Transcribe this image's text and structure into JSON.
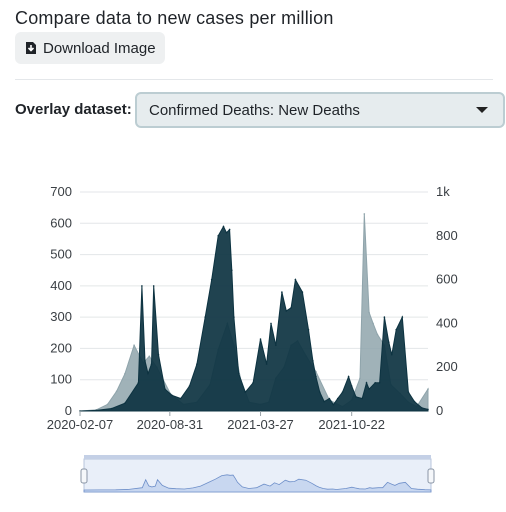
{
  "page": {
    "title": "Compare data to new cases per million"
  },
  "download": {
    "label": "Download Image",
    "icon": "download-icon"
  },
  "overlay": {
    "label": "Overlay dataset:",
    "selected": "Confirmed Deaths: New Deaths"
  },
  "colors": {
    "primary_series": "#0d3341",
    "overlay_series": "#8fa4ab",
    "navigator": "#c8d7f0"
  },
  "chart_data": {
    "type": "area",
    "x_ticks": [
      "2020-02-07",
      "2020-08-31",
      "2021-03-27",
      "2021-10-22"
    ],
    "y_left_ticks": [
      "0",
      "100",
      "200",
      "300",
      "400",
      "500",
      "600",
      "700"
    ],
    "y_left_range": [
      0,
      700
    ],
    "y_right_ticks": [
      "0",
      "200",
      "400",
      "600",
      "800",
      "1k"
    ],
    "y_right_range": [
      0,
      1000
    ],
    "x_range": [
      "2020-02-07",
      "2022-04-15"
    ],
    "grid": true,
    "series": [
      {
        "axis": "left",
        "x": [
          "2020-02-07",
          "2020-03-15",
          "2020-04-20",
          "2020-05-20",
          "2020-06-20",
          "2020-06-28",
          "2020-07-05",
          "2020-07-12",
          "2020-07-20",
          "2020-07-25",
          "2020-08-05",
          "2020-08-20",
          "2020-09-05",
          "2020-09-25",
          "2020-10-15",
          "2020-11-01",
          "2020-11-20",
          "2020-12-05",
          "2020-12-20",
          "2021-01-01",
          "2021-01-08",
          "2021-01-15",
          "2021-01-20",
          "2021-01-25",
          "2021-02-05",
          "2021-02-20",
          "2021-03-10",
          "2021-03-27",
          "2021-04-10",
          "2021-04-20",
          "2021-05-01",
          "2021-05-15",
          "2021-05-25",
          "2021-06-05",
          "2021-06-15",
          "2021-07-01",
          "2021-07-15",
          "2021-07-25",
          "2021-08-01",
          "2021-08-10",
          "2021-08-20",
          "2021-09-01",
          "2021-09-10",
          "2021-09-20",
          "2021-10-01",
          "2021-10-15",
          "2021-10-22",
          "2021-11-01",
          "2021-11-15",
          "2021-11-25",
          "2021-12-01",
          "2021-12-15",
          "2021-12-25",
          "2022-01-05",
          "2022-01-15",
          "2022-01-22",
          "2022-02-01",
          "2022-02-15",
          "2022-03-01",
          "2022-03-15",
          "2022-04-01",
          "2022-04-15"
        ],
        "values": [
          0,
          2,
          8,
          25,
          90,
          400,
          160,
          120,
          150,
          400,
          180,
          70,
          50,
          40,
          80,
          150,
          300,
          420,
          560,
          590,
          570,
          580,
          450,
          300,
          120,
          60,
          90,
          230,
          150,
          280,
          210,
          380,
          320,
          330,
          420,
          380,
          260,
          160,
          110,
          60,
          30,
          40,
          20,
          40,
          60,
          110,
          80,
          45,
          40,
          90,
          70,
          90,
          90,
          300,
          220,
          180,
          260,
          300,
          60,
          30,
          10,
          5
        ]
      },
      {
        "axis": "right",
        "x": [
          "2020-02-07",
          "2020-03-15",
          "2020-04-10",
          "2020-05-01",
          "2020-05-20",
          "2020-06-10",
          "2020-07-01",
          "2020-07-15",
          "2020-08-01",
          "2020-09-01",
          "2020-10-01",
          "2020-11-01",
          "2020-12-01",
          "2020-12-20",
          "2021-01-10",
          "2021-01-25",
          "2021-02-10",
          "2021-03-01",
          "2021-03-27",
          "2021-04-15",
          "2021-05-01",
          "2021-05-20",
          "2021-06-05",
          "2021-06-20",
          "2021-07-10",
          "2021-08-01",
          "2021-09-01",
          "2021-10-01",
          "2021-10-22",
          "2021-11-10",
          "2021-11-20",
          "2021-12-01",
          "2021-12-10",
          "2021-12-20",
          "2022-01-05",
          "2022-01-20",
          "2022-02-10",
          "2022-03-01",
          "2022-03-20",
          "2022-04-15"
        ],
        "values": [
          0,
          5,
          30,
          90,
          170,
          300,
          220,
          250,
          200,
          80,
          30,
          40,
          120,
          280,
          400,
          300,
          140,
          40,
          30,
          40,
          150,
          200,
          300,
          320,
          250,
          180,
          50,
          20,
          50,
          150,
          900,
          450,
          400,
          350,
          300,
          120,
          80,
          40,
          20,
          100
        ]
      }
    ]
  }
}
